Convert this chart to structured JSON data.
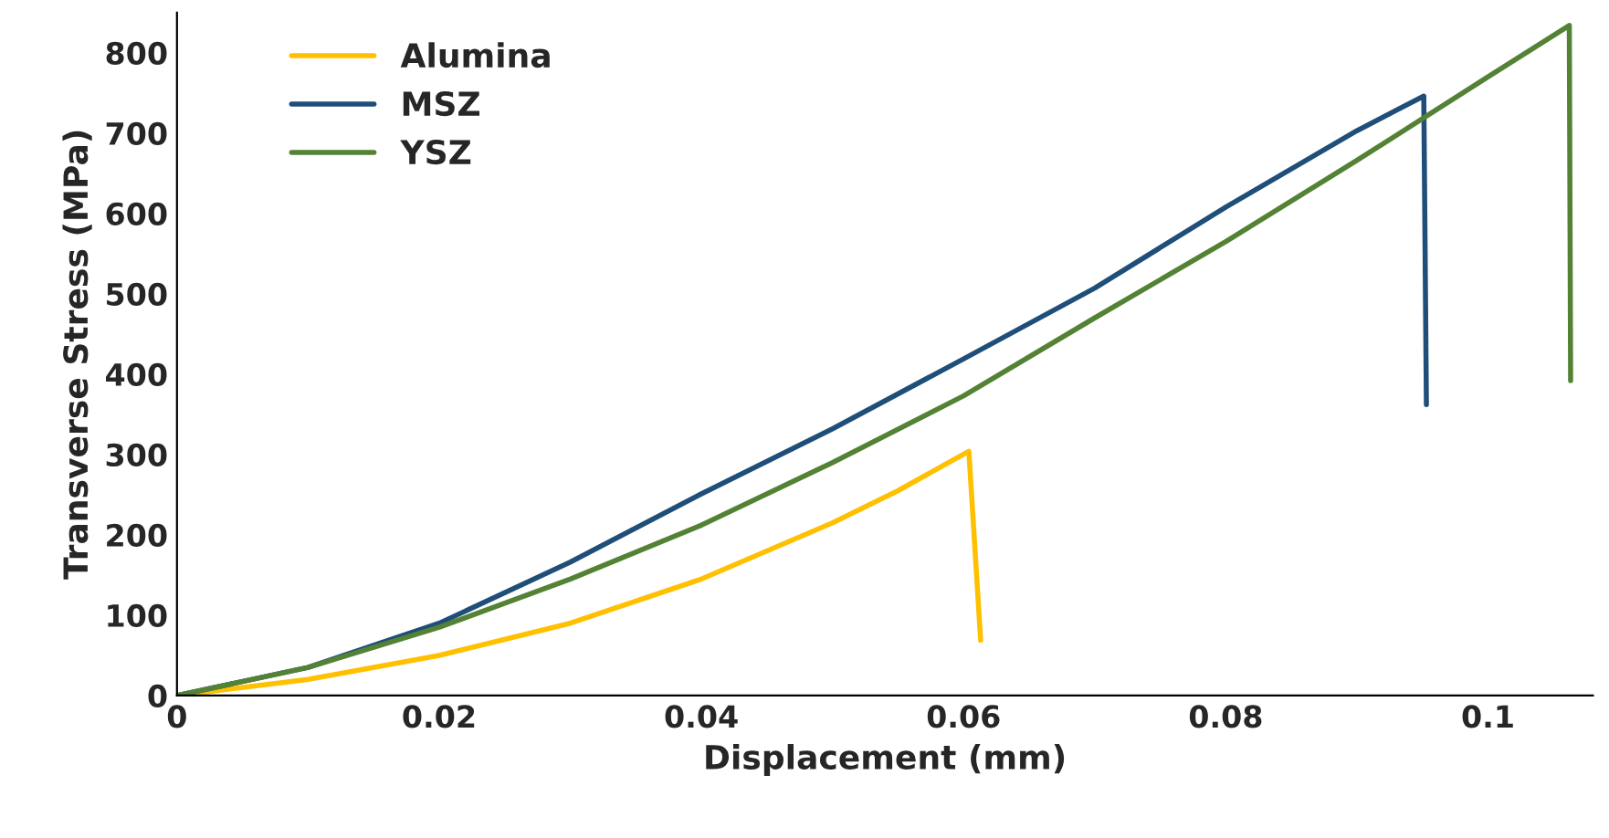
{
  "chart_data": {
    "type": "line",
    "xlabel": "Displacement (mm)",
    "ylabel": "Transverse Stress (MPa)",
    "xlim": [
      0,
      0.108
    ],
    "xticks": [
      0,
      0.02,
      0.04,
      0.06,
      0.08,
      0.1
    ],
    "ylim": [
      0,
      850
    ],
    "yticks": [
      0,
      100,
      200,
      300,
      400,
      500,
      600,
      700,
      800
    ],
    "grid": false,
    "legend": "top left",
    "marker": "none",
    "line_style": "solid",
    "series": [
      {
        "name": "Alumina",
        "color": "#ffc000",
        "x": [
          0,
          0.01,
          0.02,
          0.03,
          0.04,
          0.05,
          0.055,
          0.0604,
          0.0613
        ],
        "values": [
          0,
          20,
          50,
          90,
          145,
          215,
          255,
          304,
          69
        ]
      },
      {
        "name": "MSZ",
        "color": "#1f4e79",
        "x": [
          0,
          0.01,
          0.02,
          0.03,
          0.04,
          0.05,
          0.06,
          0.07,
          0.08,
          0.09,
          0.0951,
          0.0953
        ],
        "values": [
          0,
          35,
          90,
          166,
          251,
          332,
          419,
          507,
          608,
          703,
          746,
          362
        ]
      },
      {
        "name": "YSZ",
        "color": "#548235",
        "x": [
          0,
          0.01,
          0.02,
          0.03,
          0.04,
          0.05,
          0.06,
          0.07,
          0.08,
          0.09,
          0.1,
          0.1062,
          0.1063
        ],
        "values": [
          0,
          35,
          85,
          145,
          212,
          290,
          373,
          470,
          565,
          666,
          770,
          834,
          392
        ]
      }
    ]
  }
}
